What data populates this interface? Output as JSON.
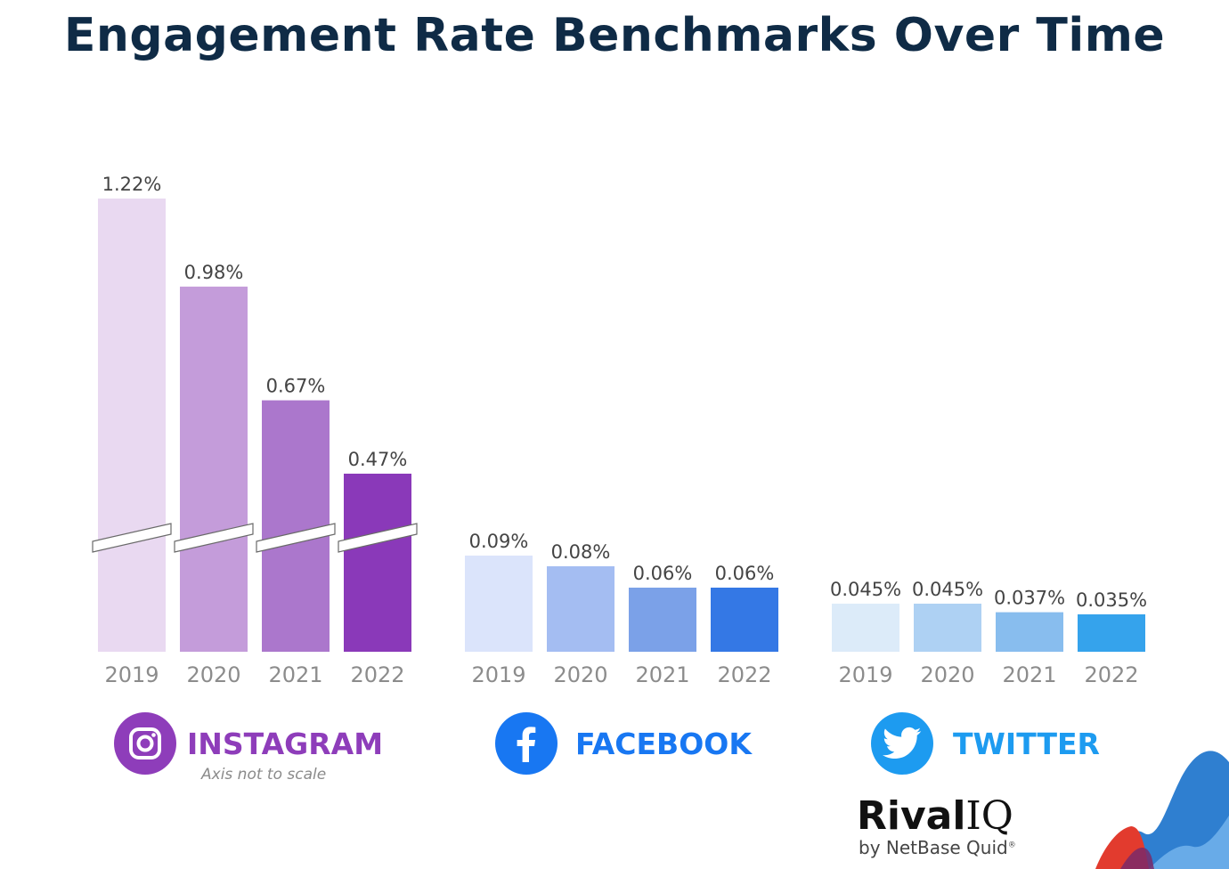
{
  "title": "Engagement Rate Benchmarks Over Time",
  "chart_data": {
    "type": "bar",
    "y_axis": "broken (Instagram axis not to scale)",
    "groups": [
      {
        "platform": "INSTAGRAM",
        "icon": "instagram-icon",
        "color": "#8e3dba",
        "categories": [
          "2019",
          "2020",
          "2021",
          "2022"
        ],
        "values": [
          1.22,
          0.98,
          0.67,
          0.47
        ],
        "labels": [
          "1.22%",
          "0.98%",
          "0.67%",
          "0.47%"
        ],
        "bar_colors": [
          "#e9d9f1",
          "#c49cda",
          "#ab77cc",
          "#8a39b9"
        ],
        "axis_break": true
      },
      {
        "platform": "FACEBOOK",
        "icon": "facebook-icon",
        "color": "#1877f2",
        "categories": [
          "2019",
          "2020",
          "2021",
          "2022"
        ],
        "values": [
          0.09,
          0.08,
          0.06,
          0.06
        ],
        "labels": [
          "0.09%",
          "0.08%",
          "0.06%",
          "0.06%"
        ],
        "bar_colors": [
          "#dbe4fb",
          "#a4bdf2",
          "#7ba1e8",
          "#3478e5"
        ],
        "axis_break": false
      },
      {
        "platform": "TWITTER",
        "icon": "twitter-icon",
        "color": "#1d9bf0",
        "categories": [
          "2019",
          "2020",
          "2021",
          "2022"
        ],
        "values": [
          0.045,
          0.045,
          0.037,
          0.035
        ],
        "labels": [
          "0.045%",
          "0.045%",
          "0.037%",
          "0.035%"
        ],
        "bar_colors": [
          "#dcebf9",
          "#aed1f3",
          "#88bdee",
          "#35a3ec"
        ],
        "axis_break": false
      }
    ]
  },
  "note": "Axis not to scale",
  "logo": {
    "main": "Rival",
    "iq": "IQ",
    "sub": "by NetBase Quid",
    "mark": "®"
  },
  "colors": {
    "title": "#0f2b46",
    "instagram": "#8e3dba",
    "facebook": "#1877f2",
    "twitter": "#1d9bf0",
    "value_label": "#444444",
    "year_label": "#8c8c8c"
  }
}
